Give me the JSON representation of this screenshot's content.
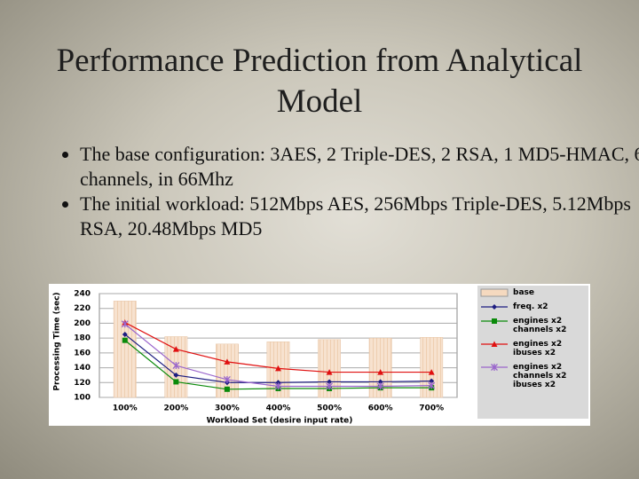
{
  "slide": {
    "title": "Performance Prediction from Analytical Model",
    "bullets": [
      "The base configuration: 3AES, 2 Triple-DES, 2 RSA, 1 MD5-HMAC, 6 channels, in 66Mhz",
      "The initial workload: 512Mbps AES, 256Mbps Triple-DES, 5.12Mbps RSA, 20.48Mbps MD5"
    ]
  },
  "chart_data": {
    "type": "combo",
    "x_label": "Workload Set (desire input rate)",
    "y_label": "Processing Time (sec)",
    "categories": [
      "100%",
      "200%",
      "300%",
      "400%",
      "500%",
      "600%",
      "700%"
    ],
    "ylim": [
      100,
      240
    ],
    "yticks": [
      100,
      120,
      140,
      160,
      180,
      200,
      220,
      240
    ],
    "grid": true,
    "series": [
      {
        "name": "base",
        "type": "bar",
        "color": "#f5d9bf",
        "values": [
          230,
          182,
          172,
          175,
          178,
          180,
          181
        ]
      },
      {
        "name": "freq. x2",
        "type": "line",
        "marker": "diamond",
        "color": "#1c1c80",
        "values": [
          185,
          130,
          120,
          120,
          121,
          121,
          122
        ]
      },
      {
        "name": "engines x2 channels x2",
        "type": "line",
        "marker": "square",
        "color": "#0a8a0a",
        "values": [
          177,
          121,
          111,
          112,
          112,
          113,
          113
        ]
      },
      {
        "name": "engines x2 ibuses x2",
        "type": "line",
        "marker": "triangle",
        "color": "#e01010",
        "values": [
          201,
          165,
          148,
          139,
          134,
          134,
          134
        ]
      },
      {
        "name": "engines x2 channels x2 ibuses x2",
        "type": "line",
        "marker": "star",
        "color": "#9a66cc",
        "values": [
          199,
          143,
          124,
          115,
          115,
          115,
          116
        ]
      }
    ]
  }
}
